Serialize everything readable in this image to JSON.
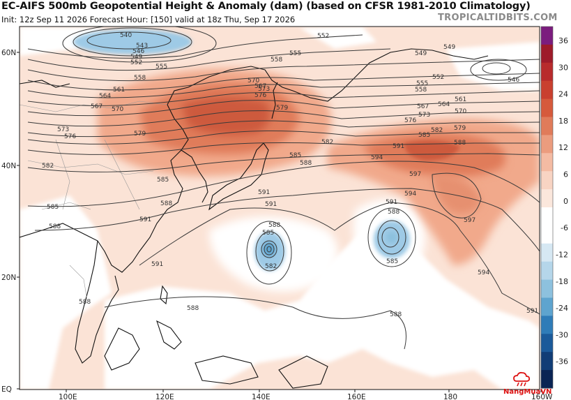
{
  "title": "EC-AIFS 500mb Geopotential Height & Anomaly (dam) (based on CFSR 1981-2010 Climatology)",
  "subtitle": "Init: 12z Sep 11 2026   Forecast Hour: [150]   valid at 18z Thu, Sep 17 2026",
  "brand": "TROPICALTIDBITS.COM",
  "watermark": "NangMuaVN",
  "x_axis_labels": [
    "100E",
    "120E",
    "140E",
    "160E",
    "180",
    "160W"
  ],
  "y_axis_labels": [
    "60N",
    "40N",
    "20N",
    "EQ"
  ],
  "colorbar": {
    "labels": [
      "36",
      "30",
      "24",
      "18",
      "12",
      "6",
      "0",
      "-6",
      "-12",
      "-18",
      "-24",
      "-30",
      "-36"
    ],
    "colors": [
      "#7b1d7e",
      "#9e1b2a",
      "#b82b2c",
      "#c9402f",
      "#d65a3c",
      "#e07b5a",
      "#eb9c7e",
      "#f4bba3",
      "#f8d4c3",
      "#fbe7dc",
      "#ffffff",
      "#ffffff",
      "#d6e8f3",
      "#b5d6ea",
      "#8dc1de",
      "#5ea4cf",
      "#2f7cb8",
      "#1b5a9a",
      "#113d76",
      "#0a2454"
    ]
  },
  "contour_labels": {
    "540": "540",
    "543": "543",
    "546": "546",
    "549": "549",
    "552": "552",
    "555": "555",
    "558": "558",
    "561": "561",
    "564": "564",
    "567": "567",
    "570": "570",
    "573": "573",
    "576": "576",
    "579": "579",
    "582": "582",
    "585": "585",
    "588": "588",
    "591": "591",
    "594": "594",
    "597": "597"
  },
  "colors": {
    "land_line": "#111111",
    "contour": "#333333",
    "neg_anom": "#9ecae6",
    "pos_light": "#f9d6c3",
    "pos_med": "#f1a98b",
    "pos_strong": "#e07b5a",
    "pos_core": "#cd5a3e"
  }
}
